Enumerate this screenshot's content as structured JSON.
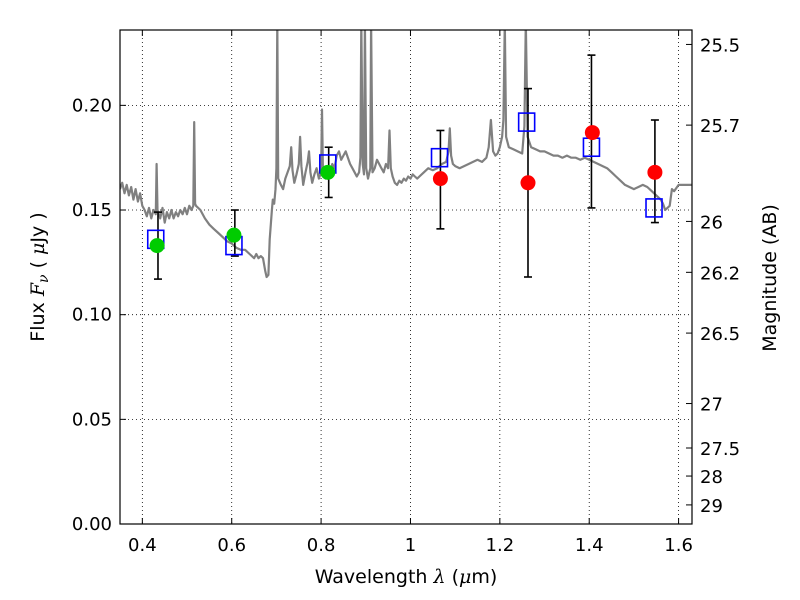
{
  "chart_data": {
    "type": "scatter",
    "xlabel": {
      "text": "Wavelength",
      "symbol": "λ",
      "unit_open": "(",
      "unit_mu": "μ",
      "unit_rest": "m)"
    },
    "ylabel": {
      "text": "Flux",
      "symbol": "F",
      "subscript": "ν",
      "unit_open": "(",
      "unit_mu": "μ",
      "unit_rest": "Jy )"
    },
    "y2label": "Magnitude (AB)",
    "xlim": [
      0.35,
      1.63
    ],
    "ylim": [
      0.0,
      0.236
    ],
    "grid": true,
    "x_ticks": [
      {
        "value": 0.4,
        "label": "0.4"
      },
      {
        "value": 0.6,
        "label": "0.6"
      },
      {
        "value": 0.8,
        "label": "0.8"
      },
      {
        "value": 1.0,
        "label": "1"
      },
      {
        "value": 1.2,
        "label": "1.2"
      },
      {
        "value": 1.4,
        "label": "1.4"
      },
      {
        "value": 1.6,
        "label": "1.6"
      }
    ],
    "y_ticks": [
      {
        "value": 0.0,
        "label": "0.00"
      },
      {
        "value": 0.05,
        "label": "0.05"
      },
      {
        "value": 0.1,
        "label": "0.10"
      },
      {
        "value": 0.15,
        "label": "0.15"
      },
      {
        "value": 0.2,
        "label": "0.20"
      }
    ],
    "mag_ticks": [
      {
        "value": 25.5,
        "label": "25.5"
      },
      {
        "value": 25.7,
        "label": "25.7"
      },
      {
        "value": 26.0,
        "label": "26"
      },
      {
        "value": 26.2,
        "label": "26.2"
      },
      {
        "value": 26.5,
        "label": "26.5"
      },
      {
        "value": 27.0,
        "label": "27"
      },
      {
        "value": 27.5,
        "label": "27.5"
      },
      {
        "value": 28.0,
        "label": "28"
      },
      {
        "value": 29.0,
        "label": "29"
      }
    ],
    "template_spectrum": {
      "color": "#808080",
      "points": [
        [
          0.35,
          0.16
        ],
        [
          0.355,
          0.163
        ],
        [
          0.36,
          0.158
        ],
        [
          0.365,
          0.162
        ],
        [
          0.37,
          0.157
        ],
        [
          0.375,
          0.161
        ],
        [
          0.38,
          0.155
        ],
        [
          0.385,
          0.16
        ],
        [
          0.39,
          0.154
        ],
        [
          0.395,
          0.158
        ],
        [
          0.4,
          0.152
        ],
        [
          0.405,
          0.15
        ],
        [
          0.41,
          0.147
        ],
        [
          0.415,
          0.151
        ],
        [
          0.42,
          0.146
        ],
        [
          0.425,
          0.15
        ],
        [
          0.43,
          0.148
        ],
        [
          0.432,
          0.172
        ],
        [
          0.434,
          0.15
        ],
        [
          0.44,
          0.146
        ],
        [
          0.445,
          0.151
        ],
        [
          0.45,
          0.144
        ],
        [
          0.455,
          0.149
        ],
        [
          0.46,
          0.146
        ],
        [
          0.465,
          0.15
        ],
        [
          0.47,
          0.146
        ],
        [
          0.475,
          0.149
        ],
        [
          0.48,
          0.147
        ],
        [
          0.485,
          0.15
        ],
        [
          0.49,
          0.148
        ],
        [
          0.495,
          0.151
        ],
        [
          0.5,
          0.148
        ],
        [
          0.505,
          0.152
        ],
        [
          0.51,
          0.15
        ],
        [
          0.514,
          0.152
        ],
        [
          0.516,
          0.192
        ],
        [
          0.518,
          0.153
        ],
        [
          0.52,
          0.152
        ],
        [
          0.53,
          0.15
        ],
        [
          0.54,
          0.146
        ],
        [
          0.55,
          0.143
        ],
        [
          0.56,
          0.141
        ],
        [
          0.57,
          0.139
        ],
        [
          0.58,
          0.137
        ],
        [
          0.59,
          0.135
        ],
        [
          0.6,
          0.134
        ],
        [
          0.61,
          0.132
        ],
        [
          0.62,
          0.131
        ],
        [
          0.63,
          0.131
        ],
        [
          0.64,
          0.129
        ],
        [
          0.65,
          0.127
        ],
        [
          0.655,
          0.129
        ],
        [
          0.66,
          0.127
        ],
        [
          0.665,
          0.128
        ],
        [
          0.67,
          0.127
        ],
        [
          0.675,
          0.121
        ],
        [
          0.678,
          0.118
        ],
        [
          0.682,
          0.119
        ],
        [
          0.685,
          0.136
        ],
        [
          0.69,
          0.15
        ],
        [
          0.692,
          0.155
        ],
        [
          0.695,
          0.153
        ],
        [
          0.698,
          0.16
        ],
        [
          0.7,
          0.17
        ],
        [
          0.702,
          0.24
        ],
        [
          0.704,
          0.165
        ],
        [
          0.71,
          0.162
        ],
        [
          0.715,
          0.16
        ],
        [
          0.72,
          0.165
        ],
        [
          0.725,
          0.168
        ],
        [
          0.73,
          0.171
        ],
        [
          0.733,
          0.18
        ],
        [
          0.736,
          0.169
        ],
        [
          0.74,
          0.163
        ],
        [
          0.745,
          0.167
        ],
        [
          0.75,
          0.172
        ],
        [
          0.753,
          0.185
        ],
        [
          0.756,
          0.171
        ],
        [
          0.76,
          0.162
        ],
        [
          0.765,
          0.168
        ],
        [
          0.77,
          0.173
        ],
        [
          0.773,
          0.178
        ],
        [
          0.776,
          0.168
        ],
        [
          0.78,
          0.163
        ],
        [
          0.785,
          0.167
        ],
        [
          0.79,
          0.17
        ],
        [
          0.795,
          0.165
        ],
        [
          0.8,
          0.168
        ],
        [
          0.802,
          0.198
        ],
        [
          0.804,
          0.17
        ],
        [
          0.81,
          0.165
        ],
        [
          0.815,
          0.17
        ],
        [
          0.82,
          0.167
        ],
        [
          0.825,
          0.172
        ],
        [
          0.83,
          0.17
        ],
        [
          0.835,
          0.176
        ],
        [
          0.84,
          0.178
        ],
        [
          0.845,
          0.174
        ],
        [
          0.85,
          0.176
        ],
        [
          0.855,
          0.178
        ],
        [
          0.86,
          0.175
        ],
        [
          0.865,
          0.172
        ],
        [
          0.87,
          0.17
        ],
        [
          0.875,
          0.168
        ],
        [
          0.88,
          0.166
        ],
        [
          0.885,
          0.168
        ],
        [
          0.888,
          0.175
        ],
        [
          0.89,
          0.24
        ],
        [
          0.893,
          0.172
        ],
        [
          0.896,
          0.167
        ],
        [
          0.898,
          0.24
        ],
        [
          0.901,
          0.17
        ],
        [
          0.905,
          0.165
        ],
        [
          0.91,
          0.17
        ],
        [
          0.912,
          0.24
        ],
        [
          0.915,
          0.168
        ],
        [
          0.92,
          0.17
        ],
        [
          0.925,
          0.174
        ],
        [
          0.93,
          0.172
        ],
        [
          0.935,
          0.17
        ],
        [
          0.94,
          0.168
        ],
        [
          0.945,
          0.172
        ],
        [
          0.95,
          0.17
        ],
        [
          0.953,
          0.188
        ],
        [
          0.956,
          0.17
        ],
        [
          0.96,
          0.166
        ],
        [
          0.965,
          0.163
        ],
        [
          0.97,
          0.162
        ],
        [
          0.975,
          0.164
        ],
        [
          0.98,
          0.163
        ],
        [
          0.985,
          0.165
        ],
        [
          0.99,
          0.164
        ],
        [
          0.995,
          0.166
        ],
        [
          1.0,
          0.165
        ],
        [
          1.005,
          0.167
        ],
        [
          1.01,
          0.166
        ],
        [
          1.015,
          0.165
        ],
        [
          1.02,
          0.166
        ],
        [
          1.03,
          0.168
        ],
        [
          1.04,
          0.17
        ],
        [
          1.05,
          0.169
        ],
        [
          1.06,
          0.17
        ],
        [
          1.07,
          0.172
        ],
        [
          1.08,
          0.173
        ],
        [
          1.085,
          0.178
        ],
        [
          1.088,
          0.189
        ],
        [
          1.091,
          0.176
        ],
        [
          1.095,
          0.172
        ],
        [
          1.1,
          0.171
        ],
        [
          1.11,
          0.17
        ],
        [
          1.12,
          0.171
        ],
        [
          1.13,
          0.172
        ],
        [
          1.14,
          0.173
        ],
        [
          1.15,
          0.174
        ],
        [
          1.16,
          0.173
        ],
        [
          1.17,
          0.175
        ],
        [
          1.175,
          0.18
        ],
        [
          1.18,
          0.193
        ],
        [
          1.185,
          0.178
        ],
        [
          1.19,
          0.176
        ],
        [
          1.195,
          0.177
        ],
        [
          1.2,
          0.18
        ],
        [
          1.205,
          0.185
        ],
        [
          1.208,
          0.193
        ],
        [
          1.211,
          0.24
        ],
        [
          1.214,
          0.185
        ],
        [
          1.22,
          0.18
        ],
        [
          1.23,
          0.179
        ],
        [
          1.24,
          0.178
        ],
        [
          1.25,
          0.177
        ],
        [
          1.255,
          0.19
        ],
        [
          1.258,
          0.24
        ],
        [
          1.262,
          0.185
        ],
        [
          1.27,
          0.18
        ],
        [
          1.28,
          0.179
        ],
        [
          1.29,
          0.178
        ],
        [
          1.3,
          0.178
        ],
        [
          1.31,
          0.177
        ],
        [
          1.32,
          0.176
        ],
        [
          1.33,
          0.176
        ],
        [
          1.34,
          0.175
        ],
        [
          1.35,
          0.176
        ],
        [
          1.36,
          0.175
        ],
        [
          1.37,
          0.175
        ],
        [
          1.38,
          0.174
        ],
        [
          1.39,
          0.175
        ],
        [
          1.4,
          0.174
        ],
        [
          1.41,
          0.173
        ],
        [
          1.42,
          0.172
        ],
        [
          1.43,
          0.171
        ],
        [
          1.44,
          0.17
        ],
        [
          1.45,
          0.168
        ],
        [
          1.46,
          0.166
        ],
        [
          1.47,
          0.164
        ],
        [
          1.48,
          0.162
        ],
        [
          1.49,
          0.161
        ],
        [
          1.5,
          0.16
        ],
        [
          1.51,
          0.161
        ],
        [
          1.52,
          0.162
        ],
        [
          1.53,
          0.161
        ],
        [
          1.54,
          0.159
        ],
        [
          1.55,
          0.157
        ],
        [
          1.56,
          0.155
        ],
        [
          1.565,
          0.153
        ],
        [
          1.57,
          0.15
        ],
        [
          1.58,
          0.152
        ],
        [
          1.585,
          0.16
        ],
        [
          1.59,
          0.159
        ],
        [
          1.6,
          0.162
        ],
        [
          1.61,
          0.162
        ],
        [
          1.62,
          0.162
        ],
        [
          1.63,
          0.162
        ]
      ]
    },
    "series": [
      {
        "marker": "open-square",
        "color": "#0000ff",
        "points": [
          [
            0.43,
            0.136
          ],
          [
            0.605,
            0.133
          ],
          [
            0.815,
            0.172
          ],
          [
            1.065,
            0.175
          ],
          [
            1.26,
            0.192
          ],
          [
            1.405,
            0.18
          ],
          [
            1.545,
            0.151
          ]
        ]
      },
      {
        "marker": "filled-circle",
        "color": "#00cc00",
        "points": [
          [
            0.433,
            0.133
          ],
          [
            0.605,
            0.138
          ],
          [
            0.815,
            0.168
          ]
        ]
      },
      {
        "marker": "filled-circle",
        "color": "#ff0000",
        "points": [
          [
            1.067,
            0.165
          ],
          [
            1.263,
            0.163
          ],
          [
            1.407,
            0.187
          ],
          [
            1.547,
            0.168
          ]
        ]
      }
    ],
    "error_bars": [
      {
        "x": 0.435,
        "low": 0.117,
        "high": 0.149
      },
      {
        "x": 0.607,
        "low": 0.128,
        "high": 0.15
      },
      {
        "x": 0.817,
        "low": 0.156,
        "high": 0.18
      },
      {
        "x": 1.067,
        "low": 0.141,
        "high": 0.188
      },
      {
        "x": 1.263,
        "low": 0.118,
        "high": 0.208
      },
      {
        "x": 1.405,
        "low": 0.151,
        "high": 0.224
      },
      {
        "x": 1.547,
        "low": 0.144,
        "high": 0.193
      }
    ]
  }
}
